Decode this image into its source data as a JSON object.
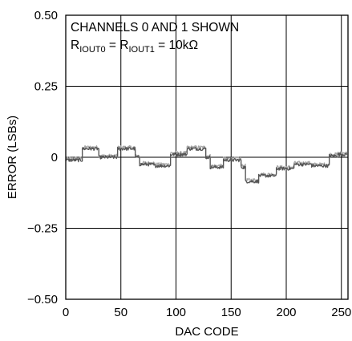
{
  "chart_data": {
    "type": "line",
    "title": "",
    "xlabel": "DAC CODE",
    "ylabel": "ERROR (LSBs)",
    "xlim": [
      0,
      256
    ],
    "ylim": [
      -0.5,
      0.5
    ],
    "x_ticks": [
      0,
      50,
      100,
      150,
      200,
      250
    ],
    "x_tick_labels": [
      "0",
      "50",
      "100",
      "150",
      "200",
      "250"
    ],
    "y_ticks": [
      -0.5,
      -0.25,
      0,
      0.25,
      0.5
    ],
    "y_tick_labels": [
      "−0.50",
      "−0.25",
      "0",
      "0.25",
      "0.50"
    ],
    "grid": true,
    "annotation": {
      "line1": "CHANNELS 0 AND 1 SHOWN",
      "line2_main1": "R",
      "line2_sub1": "IOUT0",
      "line2_main2": " = R",
      "line2_sub2": "IOUT1",
      "line2_main3": " = 10kΩ"
    },
    "series": [
      {
        "color": "#555555",
        "segments": [
          {
            "x0": 0,
            "x1": 15,
            "y": -0.01
          },
          {
            "x0": 15,
            "x1": 30,
            "y": 0.03
          },
          {
            "x0": 30,
            "x1": 47,
            "y": 0.0
          },
          {
            "x0": 47,
            "x1": 63,
            "y": 0.03
          },
          {
            "x0": 63,
            "x1": 67,
            "y": 0.0
          },
          {
            "x0": 67,
            "x1": 80,
            "y": -0.025
          },
          {
            "x0": 80,
            "x1": 95,
            "y": -0.03
          },
          {
            "x0": 95,
            "x1": 110,
            "y": 0.01
          },
          {
            "x0": 110,
            "x1": 127,
            "y": 0.03
          },
          {
            "x0": 127,
            "x1": 131,
            "y": 0.0
          },
          {
            "x0": 131,
            "x1": 143,
            "y": -0.035
          },
          {
            "x0": 143,
            "x1": 159,
            "y": -0.01
          },
          {
            "x0": 159,
            "x1": 163,
            "y": -0.035
          },
          {
            "x0": 163,
            "x1": 175,
            "y": -0.085
          },
          {
            "x0": 175,
            "x1": 191,
            "y": -0.065
          },
          {
            "x0": 191,
            "x1": 207,
            "y": -0.04
          },
          {
            "x0": 207,
            "x1": 223,
            "y": -0.025
          },
          {
            "x0": 223,
            "x1": 239,
            "y": -0.03
          },
          {
            "x0": 239,
            "x1": 247,
            "y": 0.005
          },
          {
            "x0": 247,
            "x1": 255,
            "y": 0.01
          }
        ]
      },
      {
        "color": "#a8a8a8",
        "segments": [
          {
            "x0": 0,
            "x1": 15,
            "y": -0.005
          },
          {
            "x0": 15,
            "x1": 30,
            "y": 0.035
          },
          {
            "x0": 30,
            "x1": 47,
            "y": 0.005
          },
          {
            "x0": 47,
            "x1": 63,
            "y": 0.035
          },
          {
            "x0": 63,
            "x1": 67,
            "y": 0.005
          },
          {
            "x0": 67,
            "x1": 80,
            "y": -0.02
          },
          {
            "x0": 80,
            "x1": 95,
            "y": -0.025
          },
          {
            "x0": 95,
            "x1": 110,
            "y": 0.015
          },
          {
            "x0": 110,
            "x1": 127,
            "y": 0.035
          },
          {
            "x0": 127,
            "x1": 131,
            "y": 0.005
          },
          {
            "x0": 131,
            "x1": 143,
            "y": -0.03
          },
          {
            "x0": 143,
            "x1": 159,
            "y": -0.005
          },
          {
            "x0": 159,
            "x1": 163,
            "y": -0.03
          },
          {
            "x0": 163,
            "x1": 175,
            "y": -0.08
          },
          {
            "x0": 175,
            "x1": 191,
            "y": -0.06
          },
          {
            "x0": 191,
            "x1": 207,
            "y": -0.035
          },
          {
            "x0": 207,
            "x1": 223,
            "y": -0.02
          },
          {
            "x0": 223,
            "x1": 239,
            "y": -0.025
          },
          {
            "x0": 239,
            "x1": 247,
            "y": 0.01
          },
          {
            "x0": 247,
            "x1": 255,
            "y": 0.015
          }
        ]
      }
    ]
  }
}
